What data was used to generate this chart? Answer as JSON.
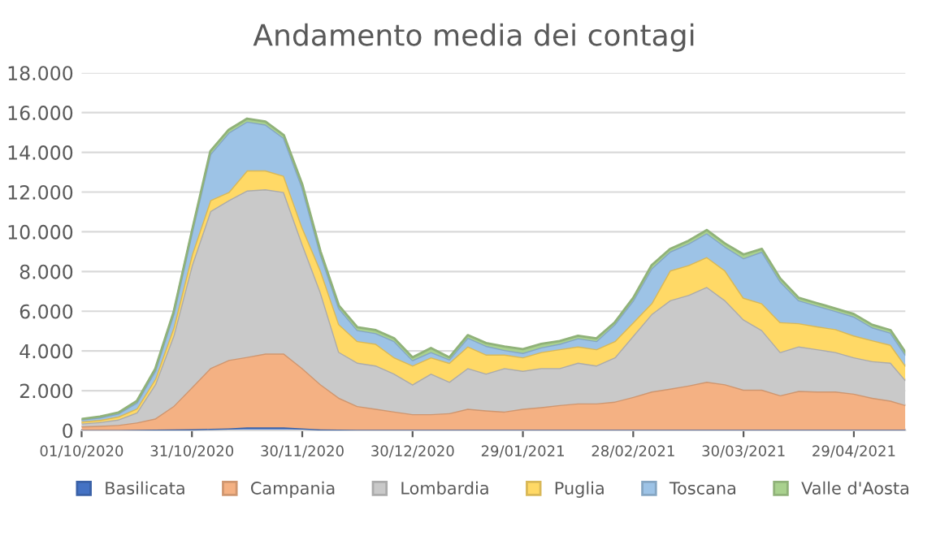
{
  "chart_data": {
    "type": "area",
    "title": "Andamento media dei contagi",
    "stacked": true,
    "x": [
      "2020-10-01",
      "2020-10-06",
      "2020-10-11",
      "2020-10-16",
      "2020-10-21",
      "2020-10-26",
      "2020-10-31",
      "2020-11-05",
      "2020-11-10",
      "2020-11-15",
      "2020-11-20",
      "2020-11-25",
      "2020-11-30",
      "2020-12-05",
      "2020-12-10",
      "2020-12-15",
      "2020-12-20",
      "2020-12-25",
      "2020-12-30",
      "2021-01-04",
      "2021-01-09",
      "2021-01-14",
      "2021-01-19",
      "2021-01-24",
      "2021-01-29",
      "2021-02-03",
      "2021-02-08",
      "2021-02-13",
      "2021-02-18",
      "2021-02-23",
      "2021-02-28",
      "2021-03-05",
      "2021-03-10",
      "2021-03-15",
      "2021-03-20",
      "2021-03-25",
      "2021-03-30",
      "2021-04-04",
      "2021-04-09",
      "2021-04-14",
      "2021-04-19",
      "2021-04-24",
      "2021-04-29",
      "2021-05-04",
      "2021-05-09",
      "2021-05-13"
    ],
    "series": [
      {
        "name": "Basilicata",
        "color": "#4472c4",
        "values": [
          20,
          20,
          20,
          30,
          40,
          50,
          60,
          80,
          100,
          150,
          150,
          150,
          100,
          50,
          40,
          30,
          30,
          30,
          30,
          30,
          30,
          30,
          30,
          30,
          30,
          30,
          30,
          30,
          30,
          30,
          30,
          30,
          30,
          30,
          30,
          30,
          30,
          30,
          30,
          30,
          30,
          30,
          30,
          30,
          30,
          30
        ]
      },
      {
        "name": "Campania",
        "color": "#f4b183",
        "values": [
          180,
          210,
          260,
          370,
          560,
          1180,
          2120,
          3060,
          3450,
          3550,
          3720,
          3720,
          3040,
          2270,
          1600,
          1200,
          1060,
          920,
          790,
          790,
          840,
          1060,
          980,
          920,
          1060,
          1140,
          1250,
          1330,
          1330,
          1420,
          1660,
          1930,
          2070,
          2230,
          2420,
          2290,
          2020,
          2020,
          1740,
          1960,
          1930,
          1930,
          1820,
          1610,
          1470,
          1250
        ]
      },
      {
        "name": "Lombardia",
        "color": "#c9c9c9",
        "values": [
          150,
          190,
          270,
          500,
          1720,
          3540,
          6140,
          7900,
          8040,
          8380,
          8270,
          8130,
          6260,
          4630,
          2310,
          2180,
          2180,
          1910,
          1500,
          2040,
          1580,
          2050,
          1850,
          2190,
          1910,
          1970,
          1860,
          2050,
          1910,
          2230,
          3080,
          3900,
          4450,
          4560,
          4780,
          4230,
          3540,
          3000,
          2180,
          2240,
          2130,
          1990,
          1830,
          1850,
          1910,
          1260
        ]
      },
      {
        "name": "Puglia",
        "color": "#ffd966",
        "values": [
          100,
          110,
          150,
          200,
          270,
          410,
          540,
          550,
          410,
          1010,
          950,
          820,
          830,
          1100,
          1400,
          1090,
          1090,
          820,
          950,
          820,
          950,
          1090,
          960,
          680,
          680,
          810,
          950,
          820,
          820,
          820,
          680,
          550,
          1500,
          1500,
          1500,
          1500,
          1090,
          1350,
          1500,
          1170,
          1150,
          1150,
          1100,
          1050,
          900,
          730
        ]
      },
      {
        "name": "Toscana",
        "color": "#9dc3e6",
        "values": [
          100,
          120,
          150,
          300,
          410,
          680,
          1100,
          2320,
          2990,
          2460,
          2310,
          1900,
          2000,
          810,
          800,
          550,
          540,
          820,
          270,
          270,
          180,
          440,
          440,
          230,
          220,
          230,
          270,
          410,
          410,
          850,
          1100,
          1750,
          950,
          1080,
          1200,
          1200,
          1990,
          2600,
          2050,
          1150,
          1040,
          910,
          950,
          650,
          610,
          550
        ]
      },
      {
        "name": "Valle d'Aosta",
        "color": "#a9d18e",
        "values": [
          30,
          50,
          50,
          80,
          100,
          100,
          100,
          150,
          150,
          150,
          150,
          150,
          170,
          140,
          130,
          150,
          150,
          140,
          140,
          200,
          100,
          130,
          140,
          180,
          190,
          180,
          140,
          130,
          140,
          100,
          130,
          160,
          140,
          150,
          160,
          160,
          190,
          140,
          150,
          130,
          130,
          130,
          130,
          130,
          130,
          130
        ]
      }
    ],
    "xlim": [
      "2020-10-01",
      "2021-05-13"
    ],
    "xticks": [
      {
        "value": "2020-10-01",
        "label": "01/10/2020"
      },
      {
        "value": "2020-10-31",
        "label": "31/10/2020"
      },
      {
        "value": "2020-11-30",
        "label": "30/11/2020"
      },
      {
        "value": "2020-12-30",
        "label": "30/12/2020"
      },
      {
        "value": "2021-01-29",
        "label": "29/01/2021"
      },
      {
        "value": "2021-02-28",
        "label": "28/02/2021"
      },
      {
        "value": "2021-03-30",
        "label": "30/03/2021"
      },
      {
        "value": "2021-04-29",
        "label": "29/04/2021"
      }
    ],
    "ylim": [
      0,
      18000
    ],
    "yticks": [
      0,
      {
        "value": 2000,
        "label": "2.000"
      },
      {
        "value": 4000,
        "label": "4.000"
      },
      {
        "value": 6000,
        "label": "6.000"
      },
      {
        "value": 8000,
        "label": "8.000"
      },
      {
        "value": 10000,
        "label": "10.000"
      },
      {
        "value": 12000,
        "label": "12.000"
      },
      {
        "value": 14000,
        "label": "14.000"
      },
      {
        "value": 16000,
        "label": "16.000"
      },
      {
        "value": 18000,
        "label": "18.000"
      }
    ],
    "grid": "y",
    "legend": "bottom"
  }
}
